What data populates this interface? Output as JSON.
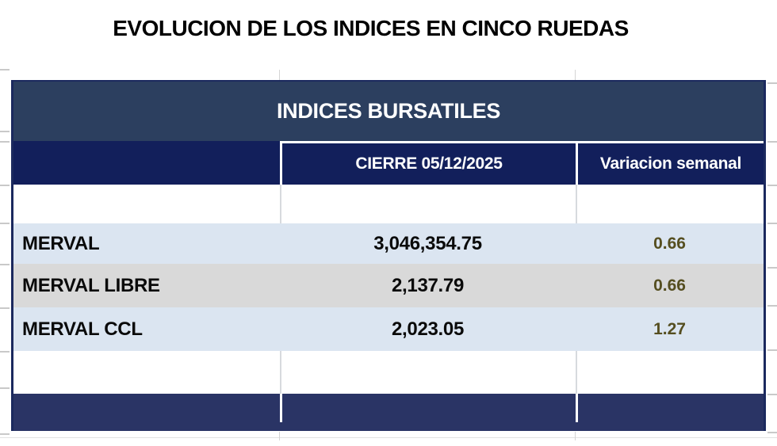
{
  "title": "EVOLUCION DE LOS INDICES EN CINCO RUEDAS",
  "table": {
    "header": "INDICES BURSATILES",
    "columns": {
      "close_label": "CIERRE 05/12/2025",
      "weekly_variation_label": "Variacion semanal"
    },
    "rows": [
      {
        "label": "MERVAL",
        "close": "3,046,354.75",
        "variation": "0.66"
      },
      {
        "label": "MERVAL LIBRE",
        "close": "2,137.79",
        "variation": "0.66"
      },
      {
        "label": "MERVAL CCL",
        "close": "2,023.05",
        "variation": "1.27"
      }
    ]
  },
  "colors": {
    "band_bg": "#2C3F5F",
    "header_bg": "#121F5B",
    "footer_bg": "#2A3465",
    "row_light_blue": "#DBE5F1",
    "row_gray": "#D9D9D9",
    "variation_text": "#554E20",
    "table_border": "#1B295E"
  }
}
